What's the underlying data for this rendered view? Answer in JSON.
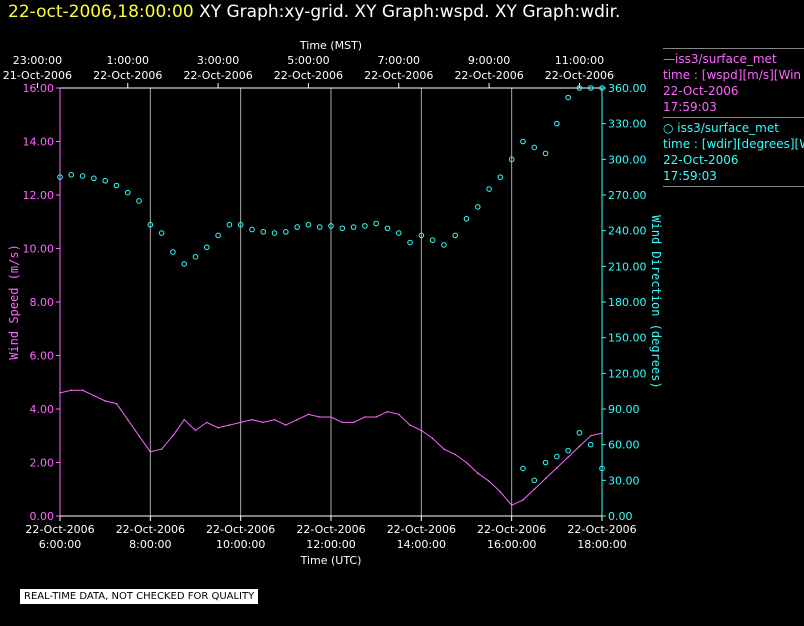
{
  "title": {
    "timestamp": "22-oct-2006,18:00:00",
    "graphs": "XY Graph:xy-grid.  XY Graph:wspd.  XY Graph:wdir."
  },
  "legend": {
    "wspd": {
      "line1": "—iss3/surface_met",
      "line2": "time : [wspd][m/s][Win",
      "line3": "22-Oct-2006",
      "line4": "17:59:03"
    },
    "wdir": {
      "line1": "○ iss3/surface_met",
      "line2": "time : [wdir][degrees][W",
      "line3": "22-Oct-2006",
      "line4": "17:59:03"
    }
  },
  "notice": "REAL-TIME DATA, NOT CHECKED FOR QUALITY",
  "colors": {
    "wspd": "#ff66ff",
    "wdir": "#33ffff",
    "title": "#ffff33",
    "grid": "#aaaaaa"
  },
  "chart_data": {
    "type": "line",
    "top_axis": {
      "title": "Time (MST)",
      "ticks": [
        {
          "time": "23:00:00",
          "date": "21-Oct-2006"
        },
        {
          "time": "1:00:00",
          "date": "22-Oct-2006"
        },
        {
          "time": "3:00:00",
          "date": "22-Oct-2006"
        },
        {
          "time": "5:00:00",
          "date": "22-Oct-2006"
        },
        {
          "time": "7:00:00",
          "date": "22-Oct-2006"
        },
        {
          "time": "9:00:00",
          "date": "22-Oct-2006"
        },
        {
          "time": "11:00:00",
          "date": "22-Oct-2006"
        }
      ]
    },
    "bottom_axis": {
      "title": "Time (UTC)",
      "xlim_hours": [
        6,
        18
      ],
      "ticks": [
        {
          "time": "6:00:00",
          "date": "22-Oct-2006"
        },
        {
          "time": "8:00:00",
          "date": "22-Oct-2006"
        },
        {
          "time": "10:00:00",
          "date": "22-Oct-2006"
        },
        {
          "time": "12:00:00",
          "date": "22-Oct-2006"
        },
        {
          "time": "14:00:00",
          "date": "22-Oct-2006"
        },
        {
          "time": "16:00:00",
          "date": "22-Oct-2006"
        },
        {
          "time": "18:00:00",
          "date": "22-Oct-2006"
        }
      ]
    },
    "left_axis": {
      "title": "Wind Speed (m/s)",
      "ylim": [
        0,
        16
      ],
      "ticks": [
        "0.00",
        "2.00",
        "4.00",
        "6.00",
        "8.00",
        "10.00",
        "12.00",
        "14.00",
        "16.00"
      ]
    },
    "right_axis": {
      "title": "Wind Direction (degrees)",
      "ylim": [
        0,
        360
      ],
      "ticks": [
        "0.00",
        "30.00",
        "60.00",
        "90.00",
        "120.00",
        "150.00",
        "180.00",
        "210.00",
        "240.00",
        "270.00",
        "300.00",
        "330.00",
        "360.00"
      ]
    },
    "series": [
      {
        "name": "wspd",
        "style": "line",
        "x": [
          6.0,
          6.25,
          6.5,
          6.75,
          7.0,
          7.25,
          7.5,
          7.75,
          8.0,
          8.25,
          8.5,
          8.75,
          9.0,
          9.25,
          9.5,
          9.75,
          10.0,
          10.25,
          10.5,
          10.75,
          11.0,
          11.25,
          11.5,
          11.75,
          12.0,
          12.25,
          12.5,
          12.75,
          13.0,
          13.25,
          13.5,
          13.75,
          14.0,
          14.25,
          14.5,
          14.75,
          15.0,
          15.25,
          15.5,
          15.75,
          16.0,
          16.25,
          16.5,
          16.75,
          17.0,
          17.25,
          17.5,
          17.75,
          18.0
        ],
        "values": [
          4.6,
          4.7,
          4.7,
          4.5,
          4.3,
          4.2,
          3.6,
          3.0,
          2.4,
          2.5,
          3.0,
          3.6,
          3.2,
          3.5,
          3.3,
          3.4,
          3.5,
          3.6,
          3.5,
          3.6,
          3.4,
          3.6,
          3.8,
          3.7,
          3.7,
          3.5,
          3.5,
          3.7,
          3.7,
          3.9,
          3.8,
          3.4,
          3.2,
          2.9,
          2.5,
          2.3,
          2.0,
          1.6,
          1.3,
          0.9,
          0.4,
          0.6,
          1.0,
          1.4,
          1.8,
          2.2,
          2.6,
          3.0,
          3.1
        ]
      },
      {
        "name": "wdir",
        "style": "scatter",
        "x": [
          6.0,
          6.25,
          6.5,
          6.75,
          7.0,
          7.25,
          7.5,
          7.75,
          8.0,
          8.25,
          8.5,
          8.75,
          9.0,
          9.25,
          9.5,
          9.75,
          10.0,
          10.25,
          10.5,
          10.75,
          11.0,
          11.25,
          11.5,
          11.75,
          12.0,
          12.25,
          12.5,
          12.75,
          13.0,
          13.25,
          13.5,
          13.75,
          14.0,
          14.25,
          14.5,
          14.75,
          15.0,
          15.25,
          15.5,
          15.75,
          16.0,
          16.25,
          16.5,
          16.75,
          17.0,
          17.25,
          17.5,
          17.75,
          18.0
        ],
        "values": [
          285,
          287,
          286,
          284,
          282,
          278,
          272,
          265,
          245,
          238,
          222,
          212,
          218,
          226,
          236,
          245,
          245,
          241,
          239,
          238,
          239,
          243,
          245,
          243,
          244,
          242,
          243,
          244,
          246,
          242,
          238,
          230,
          236,
          232,
          228,
          236,
          250,
          260,
          275,
          285,
          300,
          315,
          310,
          305,
          330,
          352,
          360,
          360,
          360
        ]
      },
      {
        "name": "wdir_late",
        "style": "scatter",
        "x": [
          16.25,
          16.5,
          16.75,
          17.0,
          17.25,
          17.5,
          17.75,
          18.0
        ],
        "values": [
          40,
          30,
          45,
          50,
          55,
          70,
          60,
          40
        ]
      }
    ]
  }
}
